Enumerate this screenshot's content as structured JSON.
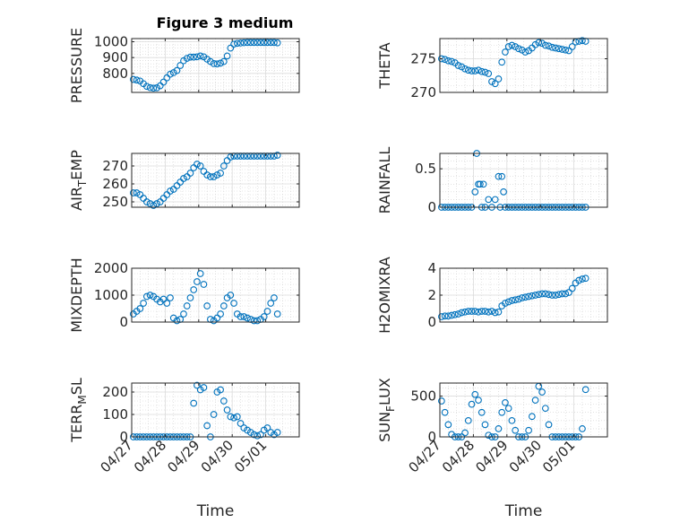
{
  "figure": {
    "title": "Figure 3 medium"
  },
  "chart_data": [
    {
      "type": "scatter",
      "ylabel": "PRESSURE",
      "ylim": [
        680,
        1020
      ],
      "yticks": [
        800,
        900,
        1000
      ],
      "ytick_labels": [
        "800",
        "900",
        "1000"
      ],
      "xlim": [
        0,
        5
      ],
      "xticks": [
        0,
        1,
        2,
        3,
        4
      ],
      "xtick_labels": [
        "04/27",
        "04/28",
        "04/29",
        "04/30",
        "05/01"
      ],
      "xlabel": "",
      "grid": true,
      "marker_color": "#0072BD",
      "x": [
        0.05,
        0.15,
        0.25,
        0.35,
        0.45,
        0.55,
        0.65,
        0.75,
        0.85,
        0.95,
        1.05,
        1.15,
        1.25,
        1.35,
        1.45,
        1.55,
        1.65,
        1.75,
        1.85,
        1.95,
        2.05,
        2.15,
        2.25,
        2.35,
        2.45,
        2.55,
        2.65,
        2.75,
        2.85,
        2.95,
        3.05,
        3.15,
        3.25,
        3.35,
        3.45,
        3.55,
        3.65,
        3.75,
        3.85,
        3.95,
        4.05,
        4.15,
        4.25,
        4.35
      ],
      "y": [
        762,
        758,
        752,
        735,
        718,
        710,
        707,
        709,
        722,
        745,
        772,
        795,
        805,
        818,
        850,
        880,
        895,
        903,
        903,
        905,
        910,
        905,
        890,
        875,
        862,
        860,
        865,
        875,
        910,
        960,
        985,
        990,
        992,
        994,
        995,
        995,
        995,
        995,
        995,
        995,
        995,
        995,
        995,
        993
      ]
    },
    {
      "type": "scatter",
      "ylabel": "THETA",
      "ylim": [
        270,
        278
      ],
      "yticks": [
        270,
        275
      ],
      "ytick_labels": [
        "270",
        "275"
      ],
      "xlim": [
        0,
        5
      ],
      "xticks": [
        0,
        1,
        2,
        3,
        4
      ],
      "xtick_labels": [
        "04/27",
        "04/28",
        "04/29",
        "04/30",
        "05/01"
      ],
      "xlabel": "",
      "grid": true,
      "marker_color": "#0072BD",
      "x": [
        0.05,
        0.15,
        0.25,
        0.35,
        0.45,
        0.55,
        0.65,
        0.75,
        0.85,
        0.95,
        1.05,
        1.15,
        1.25,
        1.35,
        1.45,
        1.55,
        1.65,
        1.75,
        1.85,
        1.95,
        2.05,
        2.15,
        2.25,
        2.35,
        2.45,
        2.55,
        2.65,
        2.75,
        2.85,
        2.95,
        3.05,
        3.15,
        3.25,
        3.35,
        3.45,
        3.55,
        3.65,
        3.75,
        3.85,
        3.95,
        4.05,
        4.15,
        4.25,
        4.35
      ],
      "y": [
        275.0,
        274.9,
        274.7,
        274.6,
        274.4,
        274.0,
        273.8,
        273.5,
        273.3,
        273.2,
        273.2,
        273.3,
        273.1,
        273.0,
        272.8,
        271.6,
        271.3,
        272.0,
        274.5,
        276.0,
        276.8,
        277.0,
        276.8,
        276.5,
        276.3,
        276.0,
        276.2,
        276.6,
        277.1,
        277.4,
        277.3,
        277.0,
        276.9,
        276.7,
        276.6,
        276.5,
        276.4,
        276.3,
        276.2,
        276.8,
        277.5,
        277.6,
        277.7,
        277.6
      ]
    },
    {
      "type": "scatter",
      "ylabel": "AIR_TEMP",
      "ylabel_main": "AIR",
      "ylabel_sub": "T",
      "ylabel_rest": "EMP",
      "ylim": [
        247,
        277
      ],
      "yticks": [
        250,
        260,
        270
      ],
      "ytick_labels": [
        "250",
        "260",
        "270"
      ],
      "xlim": [
        0,
        5
      ],
      "xticks": [
        0,
        1,
        2,
        3,
        4
      ],
      "xtick_labels": [
        "04/27",
        "04/28",
        "04/29",
        "04/30",
        "05/01"
      ],
      "xlabel": "",
      "grid": true,
      "marker_color": "#0072BD",
      "x": [
        0.05,
        0.15,
        0.25,
        0.35,
        0.45,
        0.55,
        0.65,
        0.75,
        0.85,
        0.95,
        1.05,
        1.15,
        1.25,
        1.35,
        1.45,
        1.55,
        1.65,
        1.75,
        1.85,
        1.95,
        2.05,
        2.15,
        2.25,
        2.35,
        2.45,
        2.55,
        2.65,
        2.75,
        2.85,
        2.95,
        3.05,
        3.15,
        3.25,
        3.35,
        3.45,
        3.55,
        3.65,
        3.75,
        3.85,
        3.95,
        4.05,
        4.15,
        4.25,
        4.35
      ],
      "y": [
        255,
        255,
        254,
        252,
        250,
        249,
        248,
        249,
        250,
        252,
        254,
        256,
        257,
        259,
        261,
        263,
        264,
        266,
        269,
        271,
        270,
        267,
        265,
        264,
        264,
        265,
        266,
        270,
        273,
        275,
        275.5,
        275.5,
        275.5,
        275.5,
        275.5,
        275.5,
        275.5,
        275.5,
        275.5,
        275.5,
        275.5,
        275.5,
        275.5,
        276
      ]
    },
    {
      "type": "scatter",
      "ylabel": "RAINFALL",
      "ylim": [
        0,
        0.7
      ],
      "yticks": [
        0,
        0.5
      ],
      "ytick_labels": [
        "0",
        "0.5"
      ],
      "xlim": [
        0,
        5
      ],
      "xticks": [
        0,
        1,
        2,
        3,
        4
      ],
      "xtick_labels": [
        "04/27",
        "04/28",
        "04/29",
        "04/30",
        "05/01"
      ],
      "xlabel": "",
      "grid": true,
      "marker_color": "#0072BD",
      "x": [
        0.05,
        0.15,
        0.25,
        0.35,
        0.45,
        0.55,
        0.65,
        0.75,
        0.85,
        0.95,
        1.05,
        1.1,
        1.15,
        1.2,
        1.25,
        1.3,
        1.35,
        1.45,
        1.55,
        1.65,
        1.75,
        1.8,
        1.85,
        1.9,
        1.95,
        2.05,
        2.15,
        2.25,
        2.35,
        2.45,
        2.55,
        2.65,
        2.75,
        2.85,
        2.95,
        3.05,
        3.15,
        3.25,
        3.35,
        3.45,
        3.55,
        3.65,
        3.75,
        3.85,
        3.95,
        4.05,
        4.15,
        4.25,
        4.35
      ],
      "y": [
        0,
        0,
        0,
        0,
        0,
        0,
        0,
        0,
        0,
        0,
        0.2,
        0.7,
        0.3,
        0.3,
        0,
        0.3,
        0,
        0.1,
        0,
        0.1,
        0.4,
        0,
        0.4,
        0.2,
        0,
        0,
        0,
        0,
        0,
        0,
        0,
        0,
        0,
        0,
        0,
        0,
        0,
        0,
        0,
        0,
        0,
        0,
        0,
        0,
        0,
        0,
        0,
        0,
        0
      ]
    },
    {
      "type": "scatter",
      "ylabel": "MIXDEPTH",
      "ylim": [
        0,
        2000
      ],
      "yticks": [
        0,
        1000,
        2000
      ],
      "ytick_labels": [
        "0",
        "1000",
        "2000"
      ],
      "xlim": [
        0,
        5
      ],
      "xticks": [
        0,
        1,
        2,
        3,
        4
      ],
      "xtick_labels": [
        "04/27",
        "04/28",
        "04/29",
        "04/30",
        "05/01"
      ],
      "xlabel": "",
      "grid": true,
      "marker_color": "#0072BD",
      "x": [
        0.05,
        0.15,
        0.25,
        0.35,
        0.45,
        0.55,
        0.65,
        0.75,
        0.85,
        0.95,
        1.05,
        1.15,
        1.25,
        1.35,
        1.45,
        1.55,
        1.65,
        1.75,
        1.85,
        1.95,
        2.05,
        2.15,
        2.25,
        2.35,
        2.45,
        2.55,
        2.65,
        2.75,
        2.85,
        2.95,
        3.05,
        3.15,
        3.25,
        3.35,
        3.45,
        3.55,
        3.65,
        3.75,
        3.85,
        3.95,
        4.05,
        4.15,
        4.25,
        4.35
      ],
      "y": [
        300,
        400,
        500,
        700,
        950,
        1000,
        950,
        850,
        750,
        850,
        700,
        900,
        150,
        50,
        100,
        300,
        600,
        900,
        1200,
        1500,
        1800,
        1400,
        600,
        100,
        50,
        150,
        300,
        600,
        900,
        1000,
        700,
        300,
        200,
        200,
        150,
        100,
        50,
        50,
        100,
        200,
        400,
        700,
        900,
        300
      ]
    },
    {
      "type": "scatter",
      "ylabel": "H2OMIXRA",
      "ylim": [
        0,
        4
      ],
      "yticks": [
        0,
        2,
        4
      ],
      "ytick_labels": [
        "0",
        "2",
        "4"
      ],
      "xlim": [
        0,
        5
      ],
      "xticks": [
        0,
        1,
        2,
        3,
        4
      ],
      "xtick_labels": [
        "04/27",
        "04/28",
        "04/29",
        "04/30",
        "05/01"
      ],
      "xlabel": "",
      "grid": true,
      "marker_color": "#0072BD",
      "x": [
        0.05,
        0.15,
        0.25,
        0.35,
        0.45,
        0.55,
        0.65,
        0.75,
        0.85,
        0.95,
        1.05,
        1.15,
        1.25,
        1.35,
        1.45,
        1.55,
        1.65,
        1.75,
        1.85,
        1.95,
        2.05,
        2.15,
        2.25,
        2.35,
        2.45,
        2.55,
        2.65,
        2.75,
        2.85,
        2.95,
        3.05,
        3.15,
        3.25,
        3.35,
        3.45,
        3.55,
        3.65,
        3.75,
        3.85,
        3.95,
        4.05,
        4.15,
        4.25,
        4.35
      ],
      "y": [
        0.4,
        0.45,
        0.45,
        0.5,
        0.55,
        0.6,
        0.7,
        0.75,
        0.8,
        0.8,
        0.8,
        0.75,
        0.8,
        0.8,
        0.75,
        0.8,
        0.7,
        0.75,
        1.2,
        1.4,
        1.5,
        1.6,
        1.65,
        1.7,
        1.8,
        1.85,
        1.9,
        1.95,
        2.0,
        2.05,
        2.1,
        2.1,
        2.05,
        2.0,
        2.0,
        2.05,
        2.1,
        2.1,
        2.2,
        2.5,
        2.9,
        3.1,
        3.2,
        3.25
      ]
    },
    {
      "type": "scatter",
      "ylabel": "TERR_MSL",
      "ylabel_main": "TERR",
      "ylabel_sub": "M",
      "ylabel_rest": "SL",
      "ylim": [
        0,
        240
      ],
      "yticks": [
        0,
        100,
        200
      ],
      "ytick_labels": [
        "0",
        "100",
        "200"
      ],
      "xlim": [
        0,
        5
      ],
      "xticks": [
        0,
        1,
        2,
        3,
        4
      ],
      "xtick_labels": [
        "04/27",
        "04/28",
        "04/29",
        "04/30",
        "05/01"
      ],
      "xlabel": "Time",
      "grid": true,
      "marker_color": "#0072BD",
      "x": [
        0.05,
        0.15,
        0.25,
        0.35,
        0.45,
        0.55,
        0.65,
        0.75,
        0.85,
        0.95,
        1.05,
        1.15,
        1.25,
        1.35,
        1.45,
        1.55,
        1.65,
        1.75,
        1.85,
        1.95,
        2.05,
        2.15,
        2.25,
        2.35,
        2.45,
        2.55,
        2.65,
        2.75,
        2.85,
        2.95,
        3.05,
        3.15,
        3.25,
        3.35,
        3.45,
        3.55,
        3.65,
        3.75,
        3.85,
        3.95,
        4.05,
        4.15,
        4.25,
        4.35
      ],
      "y": [
        0,
        0,
        0,
        0,
        0,
        0,
        0,
        0,
        0,
        0,
        0,
        0,
        0,
        0,
        0,
        0,
        0,
        0,
        150,
        230,
        210,
        220,
        50,
        0,
        100,
        200,
        210,
        160,
        120,
        90,
        85,
        90,
        60,
        40,
        30,
        20,
        10,
        5,
        10,
        30,
        40,
        20,
        10,
        20
      ]
    },
    {
      "type": "scatter",
      "ylabel": "SUN_FLUX",
      "ylabel_main": "SUN",
      "ylabel_sub": "F",
      "ylabel_rest": "LUX",
      "ylim": [
        0,
        660
      ],
      "yticks": [
        0,
        500
      ],
      "ytick_labels": [
        "0",
        "500"
      ],
      "xlim": [
        0,
        5
      ],
      "xticks": [
        0,
        1,
        2,
        3,
        4
      ],
      "xtick_labels": [
        "04/27",
        "04/28",
        "04/29",
        "04/30",
        "05/01"
      ],
      "xlabel": "Time",
      "grid": true,
      "marker_color": "#0072BD",
      "x": [
        0.05,
        0.15,
        0.25,
        0.35,
        0.45,
        0.55,
        0.65,
        0.75,
        0.85,
        0.95,
        1.05,
        1.15,
        1.25,
        1.35,
        1.45,
        1.55,
        1.65,
        1.75,
        1.85,
        1.95,
        2.05,
        2.15,
        2.25,
        2.35,
        2.45,
        2.55,
        2.65,
        2.75,
        2.85,
        2.95,
        3.05,
        3.15,
        3.25,
        3.35,
        3.45,
        3.55,
        3.65,
        3.75,
        3.85,
        3.95,
        4.05,
        4.15,
        4.25,
        4.35
      ],
      "y": [
        440,
        300,
        150,
        30,
        0,
        0,
        0,
        50,
        200,
        400,
        520,
        450,
        300,
        150,
        20,
        0,
        0,
        100,
        300,
        420,
        350,
        200,
        80,
        0,
        0,
        0,
        80,
        250,
        450,
        620,
        550,
        350,
        150,
        0,
        0,
        0,
        0,
        0,
        0,
        0,
        0,
        0,
        100,
        580
      ]
    }
  ]
}
